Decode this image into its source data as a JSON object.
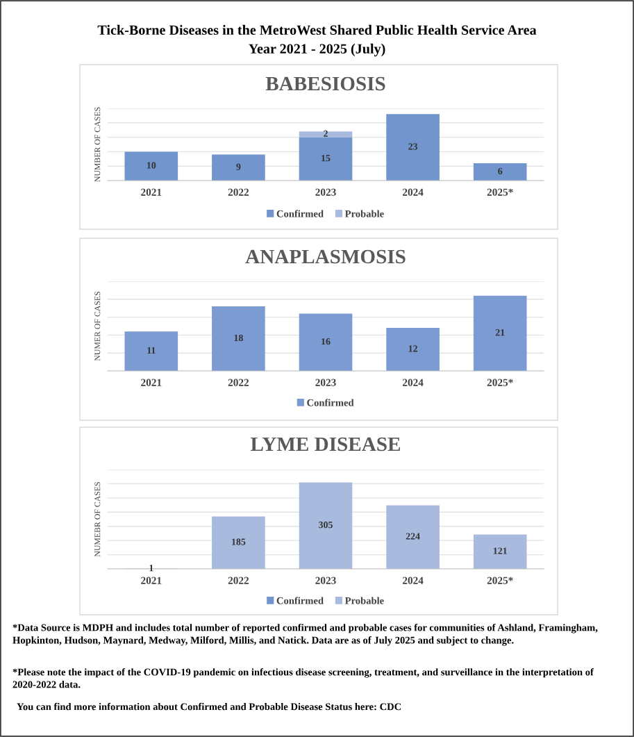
{
  "chart_data": [
    {
      "type": "other",
      "title": "Tick-Borne Diseases in the MetroWest Shared Public Health Service Area",
      "subtitle": "Year 2021 - 2025 (July)"
    },
    {
      "type": "bar",
      "title": "BABESIOSIS",
      "ylabel": "NUMBER OF CASES",
      "categories": [
        "2021",
        "2022",
        "2023",
        "2024",
        "2025*"
      ],
      "stacked": true,
      "data_labels": true,
      "grid": "y",
      "legend": "bottom",
      "tick_labels": "x",
      "ylim": [
        0,
        25
      ],
      "yticks": [
        {
          "value": 0,
          "label": null
        },
        {
          "value": 5,
          "label": null
        },
        {
          "value": 10,
          "label": null
        },
        {
          "value": 15,
          "label": null
        },
        {
          "value": 20,
          "label": null
        },
        {
          "value": 25,
          "label": null
        }
      ],
      "series": [
        {
          "name": "Confirmed",
          "color": "#7195cc",
          "values": [
            10,
            9,
            15,
            23,
            6
          ]
        },
        {
          "name": "Probable",
          "color": "#a9badf",
          "values": [
            null,
            null,
            2,
            null,
            null
          ]
        }
      ]
    },
    {
      "type": "bar",
      "title": "ANAPLASMOSIS",
      "ylabel": "NUMER OF CASES",
      "categories": [
        "2021",
        "2022",
        "2023",
        "2024",
        "2025*"
      ],
      "stacked": true,
      "data_labels": true,
      "grid": "y",
      "legend": "bottom",
      "tick_labels": "x",
      "ylim": [
        0,
        25
      ],
      "yticks": [
        {
          "value": 0,
          "label": null
        },
        {
          "value": 5,
          "label": null
        },
        {
          "value": 10,
          "label": null
        },
        {
          "value": 15,
          "label": null
        },
        {
          "value": 20,
          "label": null
        },
        {
          "value": 25,
          "label": null
        }
      ],
      "series": [
        {
          "name": "Confirmed",
          "color": "#7b9bd2",
          "values": [
            11,
            18,
            16,
            12,
            21
          ]
        }
      ]
    },
    {
      "type": "bar",
      "title": "LYME DISEASE",
      "ylabel": "NUMEBR OF CASES",
      "categories": [
        "2021",
        "2022",
        "2023",
        "2024",
        "2025*"
      ],
      "stacked": true,
      "data_labels": true,
      "grid": "y",
      "legend": "bottom",
      "tick_labels": "x",
      "ylim": [
        0,
        350
      ],
      "yticks": [
        {
          "value": 0,
          "label": null
        },
        {
          "value": 50,
          "label": null
        },
        {
          "value": 100,
          "label": null
        },
        {
          "value": 150,
          "label": null
        },
        {
          "value": 200,
          "label": null
        },
        {
          "value": 250,
          "label": null
        },
        {
          "value": 300,
          "label": null
        },
        {
          "value": 350,
          "label": null
        }
      ],
      "series": [
        {
          "name": "Confirmed",
          "color": "#7195cc",
          "values": [
            null,
            null,
            null,
            null,
            null
          ]
        },
        {
          "name": "Probable",
          "color": "#a9badf",
          "values": [
            1,
            185,
            305,
            224,
            121
          ]
        }
      ]
    },
    {
      "type": "other",
      "annotations": [
        "*Data Source is MDPH and includes total number of reported confirmed and probable cases for communities of Ashland, Framingham, Hopkinton, Hudson, Maynard, Medway, Milford, Millis, and Natick. Data are as of July 2025 and subject to change.",
        "*Please note the impact of the COVID-19 pandemic on infectious disease screening, treatment, and surveillance in the interpretation of 2020-2022 data.",
        "You can find more information about Confirmed and Probable Disease Status here: CDC"
      ]
    }
  ]
}
